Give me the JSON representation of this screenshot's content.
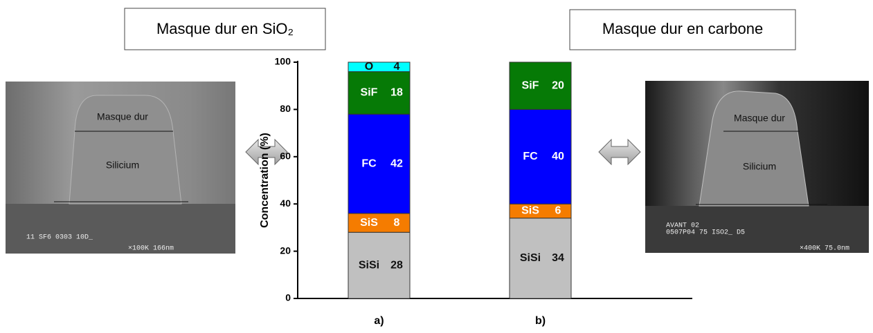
{
  "boxes": {
    "left": "Masque dur en SiO₂",
    "right": "Masque dur en carbone"
  },
  "left_image": {
    "top_label": "Masque dur",
    "middle_label": "Silicium",
    "caption_1": "11 SF6 0303 10D_",
    "caption_2": "×100K 166nm"
  },
  "right_image": {
    "top_label": "Masque dur",
    "middle_label": "Silicium",
    "caption_1": "AVANT 02",
    "caption_2": "0507P04 75 ISO2_  D5",
    "caption_3": "×400K 75.0nm"
  },
  "chart_data": {
    "type": "stacked_bar",
    "ylabel": "Concentration (%)",
    "categories": [
      "a)",
      "b)"
    ],
    "series": [
      {
        "name": "SiSi",
        "color": "#c0c0c0",
        "values": [
          28,
          34
        ]
      },
      {
        "name": "SiS",
        "color": "#f57c00",
        "values": [
          8,
          6
        ]
      },
      {
        "name": "FC",
        "color": "#0000ff",
        "values": [
          42,
          40
        ]
      },
      {
        "name": "SiF",
        "color": "#067a06",
        "values": [
          18,
          20
        ]
      },
      {
        "name": "O",
        "color": "#00ffff",
        "values": [
          4,
          null
        ]
      }
    ],
    "ylim": [
      0,
      100
    ],
    "yticks": [
      0,
      20,
      40,
      60,
      80,
      100
    ]
  }
}
